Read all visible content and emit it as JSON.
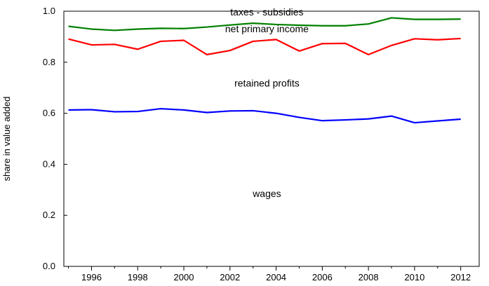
{
  "chart_data": {
    "type": "line",
    "ylabel": "share in value added",
    "xlabel": "",
    "ylim": [
      0.0,
      1.0
    ],
    "xlim": [
      1994.8,
      2012.8
    ],
    "xticks": [
      1996,
      1998,
      2000,
      2002,
      2004,
      2006,
      2008,
      2010,
      2012
    ],
    "yticks": [
      "0.0",
      "0.2",
      "0.4",
      "0.6",
      "0.8",
      "1.0"
    ],
    "grid": false,
    "x": [
      1995,
      1996,
      1997,
      1998,
      1999,
      2000,
      2001,
      2002,
      2003,
      2004,
      2005,
      2006,
      2007,
      2008,
      2009,
      2010,
      2011,
      2012
    ],
    "series": [
      {
        "name": "taxes - subsidies",
        "color": "#008000",
        "values": [
          0.941,
          0.93,
          0.925,
          0.93,
          0.933,
          0.932,
          0.938,
          0.946,
          0.953,
          0.948,
          0.945,
          0.943,
          0.943,
          0.95,
          0.974,
          0.968,
          0.968,
          0.969
        ]
      },
      {
        "name": "net primary income",
        "color": "#ff0000",
        "values": [
          0.891,
          0.868,
          0.87,
          0.851,
          0.882,
          0.886,
          0.83,
          0.846,
          0.882,
          0.889,
          0.844,
          0.873,
          0.874,
          0.83,
          0.866,
          0.892,
          0.888,
          0.893
        ]
      },
      {
        "name": "wages",
        "color": "#0000ff",
        "values": [
          0.613,
          0.614,
          0.606,
          0.607,
          0.618,
          0.613,
          0.603,
          0.609,
          0.61,
          0.6,
          0.584,
          0.571,
          0.574,
          0.578,
          0.589,
          0.563,
          0.57,
          0.577
        ]
      }
    ],
    "annotations": [
      {
        "text": "taxes - subsidies",
        "x": 2003.6,
        "y": 0.983
      },
      {
        "text": "net primary income",
        "x": 2003.6,
        "y": 0.917
      },
      {
        "text": "retained profits",
        "x": 2003.6,
        "y": 0.704
      },
      {
        "text": "wages",
        "x": 2003.6,
        "y": 0.272
      }
    ]
  }
}
